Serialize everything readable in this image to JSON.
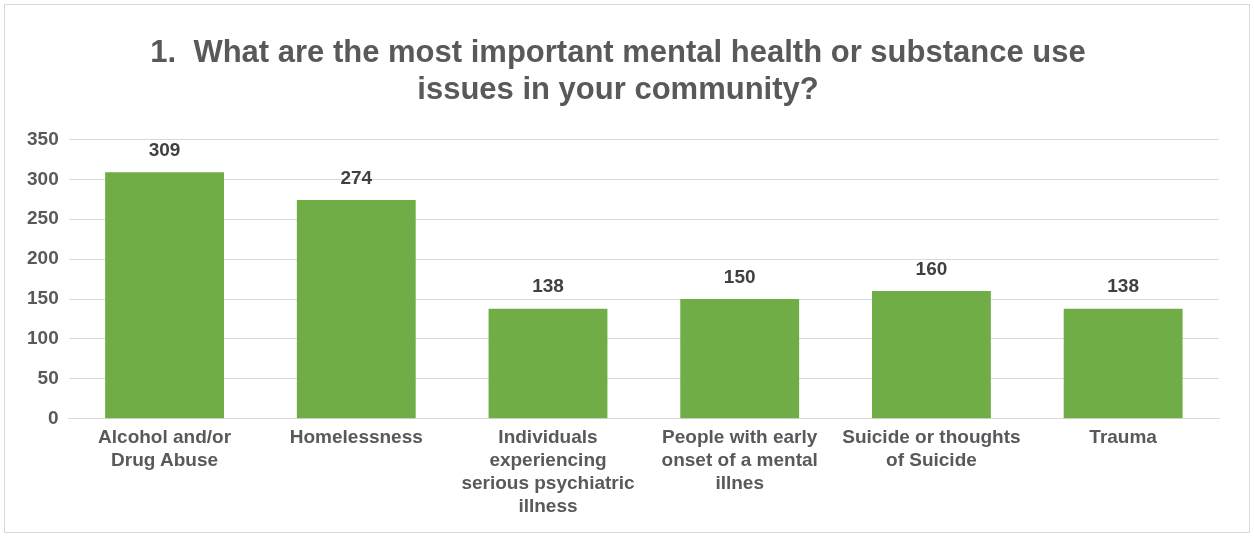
{
  "chart_data": {
    "type": "bar",
    "title": "1.  What are the most important mental health or substance use issues in your community?",
    "categories": [
      "Alcohol and/or Drug Abuse",
      "Homelessness",
      "Individuals experiencing serious psychiatric illness",
      "People with early onset of a mental illnes",
      "Suicide or thoughts of Suicide",
      "Trauma"
    ],
    "values": [
      309,
      274,
      138,
      150,
      160,
      138
    ],
    "color": "#70ad47",
    "ylim": [
      0,
      350
    ],
    "yticks": [
      0,
      50,
      100,
      150,
      200,
      250,
      300,
      350
    ],
    "grid": "y",
    "data_labels": true
  }
}
